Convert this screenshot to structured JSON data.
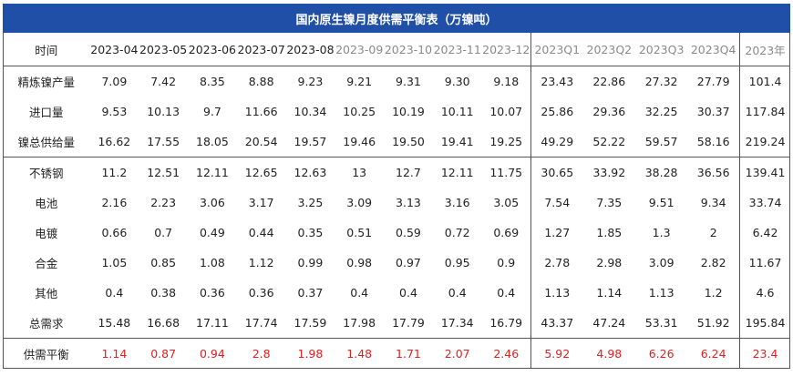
{
  "title": "国内原生镍月度供需平衡表（万镍吨）",
  "columns": [
    "时间",
    "2023-04",
    "2023-05",
    "2023-06",
    "2023-07",
    "2023-08",
    "2023-09",
    "2023-10",
    "2023-11",
    "2023-12",
    "2023Q1",
    "2023Q2",
    "2023Q3",
    "2023Q4",
    "2023年"
  ],
  "rows": [
    {
      "label": "精炼镍产量",
      "values": [
        "7.09",
        "7.42",
        "8.35",
        "8.88",
        "9.23",
        "9.21",
        "9.31",
        "9.30",
        "9.18",
        "23.43",
        "22.86",
        "27.32",
        "27.79",
        "101.4"
      ]
    },
    {
      "label": "进口量",
      "values": [
        "9.53",
        "10.13",
        "9.7",
        "11.66",
        "10.34",
        "10.25",
        "10.19",
        "10.11",
        "10.07",
        "25.86",
        "29.36",
        "32.25",
        "30.37",
        "117.84"
      ]
    },
    {
      "label": "镍总供给量",
      "values": [
        "16.62",
        "17.55",
        "18.05",
        "20.54",
        "19.57",
        "19.46",
        "19.50",
        "19.41",
        "19.25",
        "49.29",
        "52.22",
        "59.57",
        "58.16",
        "219.24"
      ]
    },
    {
      "label": "不锈钢",
      "values": [
        "11.2",
        "12.51",
        "12.11",
        "12.65",
        "12.63",
        "13",
        "12.7",
        "12.11",
        "11.75",
        "30.65",
        "33.92",
        "38.28",
        "36.56",
        "139.41"
      ]
    },
    {
      "label": "电池",
      "values": [
        "2.16",
        "2.23",
        "3.06",
        "3.17",
        "3.25",
        "3.09",
        "3.13",
        "3.16",
        "3.05",
        "7.54",
        "7.35",
        "9.51",
        "9.34",
        "33.74"
      ]
    },
    {
      "label": "电镀",
      "values": [
        "0.66",
        "0.7",
        "0.49",
        "0.44",
        "0.35",
        "0.51",
        "0.59",
        "0.72",
        "0.69",
        "1.27",
        "1.85",
        "1.3",
        "2",
        "6.42"
      ]
    },
    {
      "label": "合金",
      "values": [
        "1.05",
        "0.85",
        "1.08",
        "1.12",
        "0.99",
        "0.98",
        "0.97",
        "0.95",
        "0.9",
        "2.78",
        "2.98",
        "3.09",
        "2.82",
        "11.67"
      ]
    },
    {
      "label": "其他",
      "values": [
        "0.4",
        "0.38",
        "0.36",
        "0.36",
        "0.37",
        "0.4",
        "0.4",
        "0.4",
        "0.4",
        "1.13",
        "1.14",
        "1.13",
        "1.2",
        "4.6"
      ]
    },
    {
      "label": "总需求",
      "values": [
        "15.48",
        "16.68",
        "17.11",
        "17.74",
        "17.59",
        "17.98",
        "17.79",
        "17.34",
        "16.79",
        "43.37",
        "47.24",
        "53.31",
        "51.92",
        "195.84"
      ]
    },
    {
      "label": "供需平衡",
      "values": [
        "1.14",
        "0.87",
        "0.94",
        "2.8",
        "1.98",
        "1.48",
        "1.71",
        "2.07",
        "2.46",
        "5.92",
        "4.98",
        "6.26",
        "6.24",
        "23.4"
      ]
    }
  ],
  "colors": {
    "title_bg": "#1f4fa6",
    "balance_text": "#e02020",
    "forecast_header": "#8a8a8a"
  }
}
